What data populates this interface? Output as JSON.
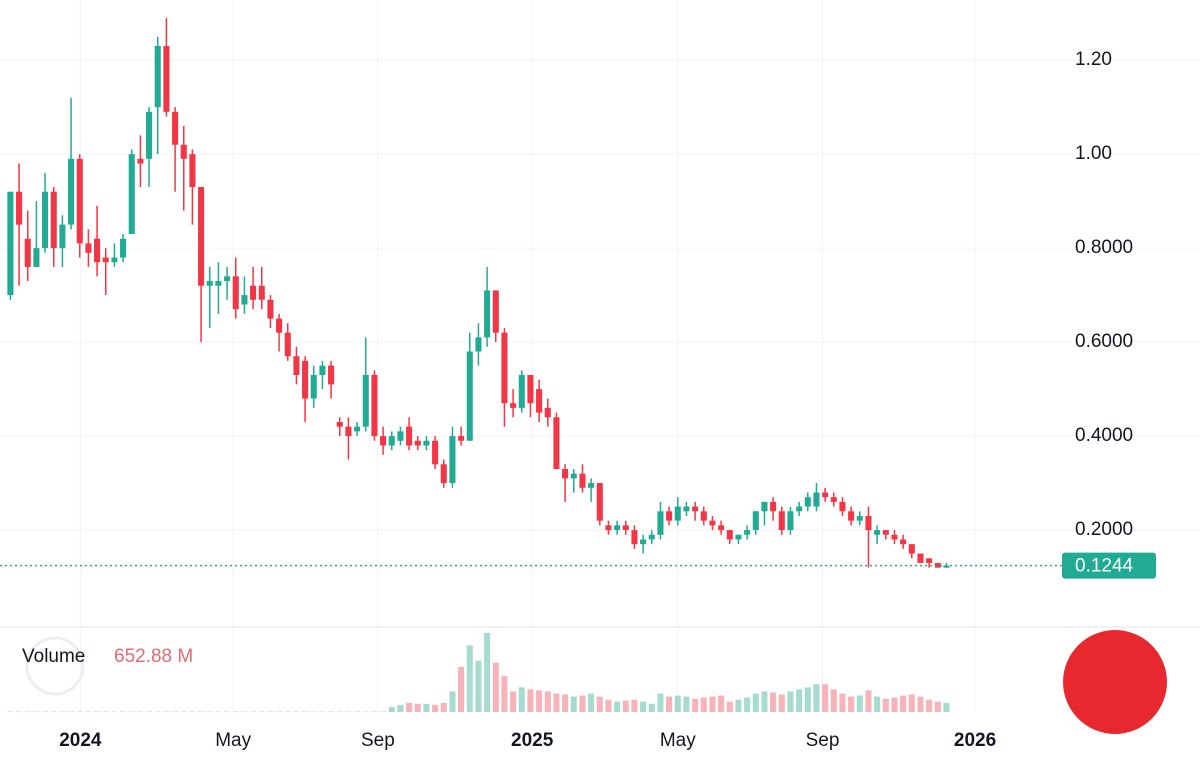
{
  "chart_data": {
    "type": "candlestick",
    "open": [
      0.7,
      0.92,
      0.82,
      0.76,
      0.8,
      0.92,
      0.8,
      0.85,
      0.99,
      0.81,
      0.82,
      0.78,
      0.77,
      0.78,
      0.83,
      0.99,
      0.99,
      1.1,
      1.23,
      1.09,
      1.02,
      1.0,
      0.93,
      0.72,
      0.72,
      0.73,
      0.74,
      0.68,
      0.72,
      0.72,
      0.69,
      0.65,
      0.62,
      0.57,
      0.56,
      0.48,
      0.53,
      0.55,
      0.43,
      0.42,
      0.41,
      0.42,
      0.53,
      0.4,
      0.38,
      0.39,
      0.42,
      0.39,
      0.38,
      0.39,
      0.34,
      0.3,
      0.4,
      0.39,
      0.58,
      0.61,
      0.71,
      0.62,
      0.47,
      0.46,
      0.53,
      0.5,
      0.46,
      0.44,
      0.33,
      0.31,
      0.32,
      0.29,
      0.3,
      0.21,
      0.2,
      0.21,
      0.2,
      0.17,
      0.18,
      0.19,
      0.24,
      0.22,
      0.24,
      0.25,
      0.24,
      0.22,
      0.21,
      0.2,
      0.18,
      0.19,
      0.2,
      0.24,
      0.26,
      0.24,
      0.2,
      0.24,
      0.25,
      0.25,
      0.28,
      0.27,
      0.26,
      0.24,
      0.22,
      0.23,
      0.19,
      0.2,
      0.19,
      0.18,
      0.17,
      0.15,
      0.14,
      0.13,
      0.12
    ],
    "high": [
      0.92,
      0.98,
      0.88,
      0.9,
      0.96,
      0.93,
      0.87,
      1.12,
      1.0,
      0.84,
      0.89,
      0.8,
      0.81,
      0.83,
      1.01,
      1.04,
      1.1,
      1.25,
      1.29,
      1.1,
      1.06,
      1.01,
      0.93,
      0.76,
      0.77,
      0.76,
      0.78,
      0.74,
      0.76,
      0.76,
      0.7,
      0.66,
      0.64,
      0.59,
      0.57,
      0.55,
      0.56,
      0.56,
      0.44,
      0.44,
      0.43,
      0.61,
      0.54,
      0.42,
      0.41,
      0.42,
      0.44,
      0.4,
      0.4,
      0.4,
      0.35,
      0.42,
      0.42,
      0.62,
      0.64,
      0.76,
      0.71,
      0.63,
      0.5,
      0.54,
      0.53,
      0.52,
      0.48,
      0.45,
      0.34,
      0.33,
      0.34,
      0.31,
      0.3,
      0.22,
      0.22,
      0.22,
      0.21,
      0.19,
      0.2,
      0.26,
      0.25,
      0.27,
      0.26,
      0.26,
      0.25,
      0.23,
      0.22,
      0.2,
      0.19,
      0.21,
      0.24,
      0.26,
      0.27,
      0.25,
      0.25,
      0.26,
      0.28,
      0.3,
      0.29,
      0.28,
      0.27,
      0.25,
      0.24,
      0.25,
      0.21,
      0.2,
      0.2,
      0.19,
      0.17,
      0.15,
      0.14,
      0.13,
      0.13
    ],
    "low": [
      0.69,
      0.72,
      0.73,
      0.76,
      0.79,
      0.76,
      0.76,
      0.84,
      0.78,
      0.76,
      0.74,
      0.7,
      0.76,
      0.77,
      0.83,
      0.93,
      0.93,
      1.0,
      1.08,
      0.92,
      0.88,
      0.85,
      0.6,
      0.63,
      0.66,
      0.69,
      0.65,
      0.66,
      0.67,
      0.67,
      0.63,
      0.58,
      0.56,
      0.51,
      0.43,
      0.46,
      0.5,
      0.48,
      0.4,
      0.35,
      0.4,
      0.41,
      0.39,
      0.36,
      0.37,
      0.38,
      0.37,
      0.37,
      0.37,
      0.33,
      0.29,
      0.29,
      0.38,
      0.39,
      0.55,
      0.59,
      0.6,
      0.42,
      0.44,
      0.45,
      0.44,
      0.43,
      0.42,
      0.33,
      0.26,
      0.28,
      0.28,
      0.26,
      0.21,
      0.19,
      0.19,
      0.19,
      0.16,
      0.15,
      0.17,
      0.18,
      0.21,
      0.21,
      0.23,
      0.22,
      0.21,
      0.2,
      0.19,
      0.17,
      0.17,
      0.18,
      0.19,
      0.21,
      0.22,
      0.19,
      0.19,
      0.23,
      0.24,
      0.24,
      0.26,
      0.25,
      0.23,
      0.21,
      0.21,
      0.12,
      0.17,
      0.18,
      0.17,
      0.16,
      0.14,
      0.13,
      0.12,
      0.12,
      0.12
    ],
    "close": [
      0.92,
      0.85,
      0.76,
      0.8,
      0.92,
      0.8,
      0.85,
      0.99,
      0.81,
      0.79,
      0.77,
      0.77,
      0.78,
      0.82,
      1.0,
      0.98,
      1.09,
      1.23,
      1.09,
      1.02,
      0.99,
      0.93,
      0.72,
      0.73,
      0.73,
      0.74,
      0.67,
      0.7,
      0.69,
      0.69,
      0.65,
      0.62,
      0.57,
      0.53,
      0.48,
      0.53,
      0.55,
      0.51,
      0.42,
      0.4,
      0.42,
      0.53,
      0.4,
      0.38,
      0.4,
      0.41,
      0.38,
      0.38,
      0.39,
      0.34,
      0.3,
      0.4,
      0.39,
      0.58,
      0.61,
      0.71,
      0.62,
      0.47,
      0.46,
      0.53,
      0.47,
      0.45,
      0.44,
      0.33,
      0.31,
      0.32,
      0.29,
      0.3,
      0.22,
      0.2,
      0.21,
      0.2,
      0.17,
      0.18,
      0.19,
      0.24,
      0.22,
      0.25,
      0.25,
      0.24,
      0.22,
      0.21,
      0.2,
      0.18,
      0.19,
      0.2,
      0.24,
      0.26,
      0.24,
      0.2,
      0.24,
      0.25,
      0.27,
      0.28,
      0.27,
      0.26,
      0.24,
      0.22,
      0.23,
      0.2,
      0.2,
      0.19,
      0.18,
      0.17,
      0.15,
      0.13,
      0.13,
      0.12,
      0.1244
    ],
    "volume": [
      30,
      30,
      30,
      30,
      30,
      30,
      30,
      30,
      30,
      30,
      30,
      30,
      30,
      30,
      30,
      30,
      30,
      30,
      30,
      30,
      30,
      30,
      30,
      30,
      30,
      30,
      30,
      30,
      30,
      30,
      30,
      30,
      30,
      30,
      30,
      30,
      30,
      30,
      30,
      30,
      30,
      30,
      30,
      30,
      360,
      500,
      650,
      580,
      580,
      500,
      650,
      1450,
      3190,
      4710,
      3620,
      5580,
      3480,
      2540,
      1450,
      1740,
      1600,
      1520,
      1450,
      1300,
      1230,
      1090,
      1160,
      1300,
      1090,
      870,
      730,
      800,
      870,
      730,
      580,
      1300,
      1090,
      1160,
      1090,
      940,
      1020,
      1090,
      1160,
      730,
      870,
      1020,
      1300,
      1450,
      1380,
      1230,
      1450,
      1600,
      1740,
      1960,
      1960,
      1600,
      1300,
      1090,
      1160,
      1520,
      1090,
      940,
      1020,
      1160,
      1230,
      1090,
      870,
      730,
      652.88
    ],
    "up_color": "#22ab94",
    "down_color": "#f23645",
    "volume_up_color": "#a6dccf",
    "volume_down_color": "#f8b3b9",
    "xlim": [
      -1.2,
      121.1
    ],
    "xticks": [
      {
        "value": 8.07,
        "label": "2024"
      },
      {
        "value": 25.7,
        "label": "May"
      },
      {
        "value": 42.4,
        "label": "Sep"
      },
      {
        "value": 60.2,
        "label": "2025"
      },
      {
        "value": 77.0,
        "label": "May"
      },
      {
        "value": 93.7,
        "label": "Sep"
      },
      {
        "value": 111.3,
        "label": "2026"
      }
    ],
    "ylim": [
      -0.002,
      1.328
    ],
    "yticks": [
      {
        "value": 0.2,
        "label": "0.2000"
      },
      {
        "value": 0.4,
        "label": "0.4000"
      },
      {
        "value": 0.6,
        "label": "0.6000"
      },
      {
        "value": 0.8,
        "label": "0.8000"
      },
      {
        "value": 1.0,
        "label": "1.00"
      },
      {
        "value": 1.2,
        "label": "1.20"
      }
    ],
    "volume_ylim": [
      0,
      6000
    ],
    "grid": true,
    "last_price": 0.1244,
    "volume_title": "Volume",
    "volume_last_label": "652.88 M"
  }
}
